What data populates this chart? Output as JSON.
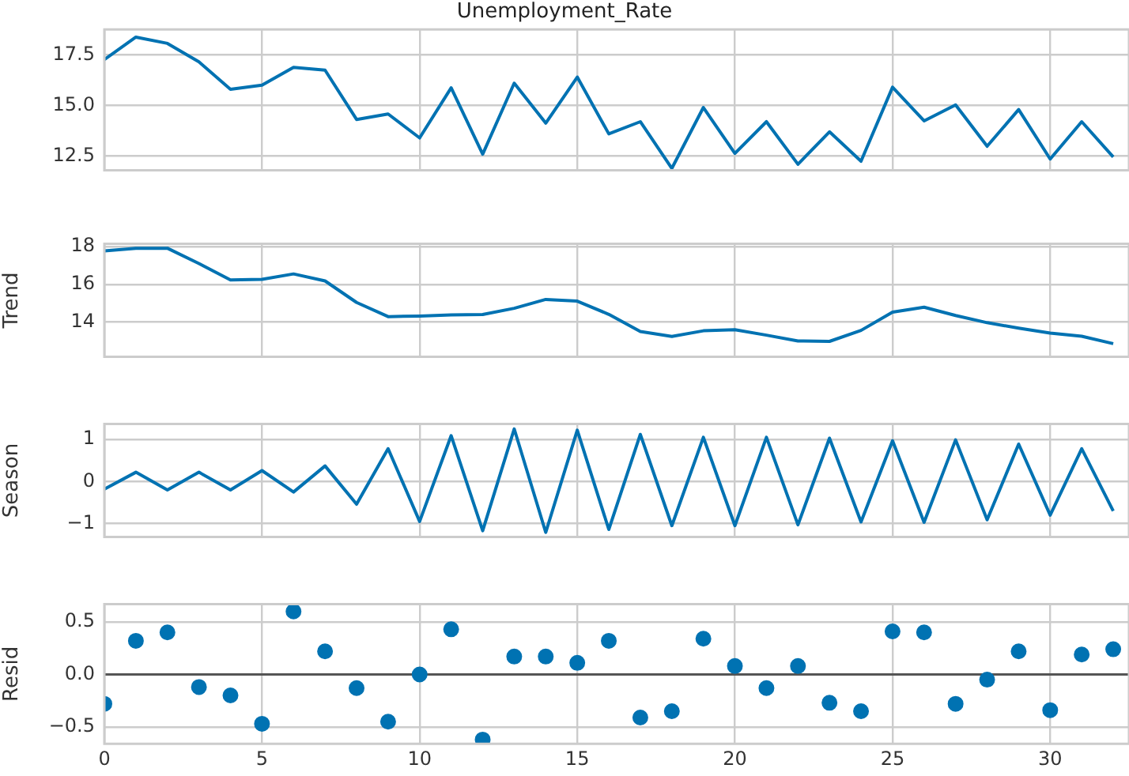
{
  "chart_data": [
    {
      "type": "line",
      "title": "Unemployment_Rate",
      "x": [
        0,
        1,
        2,
        3,
        4,
        5,
        6,
        7,
        8,
        9,
        10,
        11,
        12,
        13,
        14,
        15,
        16,
        17,
        18,
        19,
        20,
        21,
        22,
        23,
        24,
        25,
        26,
        27,
        28,
        29,
        30,
        31,
        32
      ],
      "xlim": [
        0,
        32.5
      ],
      "xticks": [
        0,
        5,
        10,
        15,
        20,
        25,
        30
      ],
      "ylim": [
        11.8,
        18.75
      ],
      "yticks": [
        12.5,
        {
          "value": 15,
          "label": "15.0"
        },
        17.5
      ],
      "tick_labels": "y",
      "grid": true,
      "color": "#0072b2",
      "values": [
        17.26,
        18.37,
        18.06,
        17.15,
        15.8,
        16.0,
        16.88,
        16.74,
        14.31,
        14.58,
        13.4,
        15.87,
        12.6,
        16.1,
        14.13,
        16.4,
        13.6,
        14.2,
        11.9,
        14.9,
        12.64,
        14.2,
        12.1,
        13.7,
        12.25,
        15.9,
        14.24,
        15.03,
        12.99,
        14.8,
        12.36,
        14.2,
        12.46
      ]
    },
    {
      "type": "line",
      "ylabel": "Trend",
      "x": [
        0,
        1,
        2,
        3,
        4,
        5,
        6,
        7,
        8,
        9,
        10,
        11,
        12,
        13,
        14,
        15,
        16,
        17,
        18,
        19,
        20,
        21,
        22,
        23,
        24,
        25,
        26,
        27,
        28,
        29,
        30,
        31,
        32
      ],
      "xlim": [
        0,
        32.5
      ],
      "xticks": [
        0,
        5,
        10,
        15,
        20,
        25,
        30
      ],
      "ylim": [
        12.16,
        18.15
      ],
      "yticks": [
        14,
        16,
        18
      ],
      "tick_labels": "y",
      "grid": true,
      "color": "#0072b2",
      "values": [
        17.77,
        17.91,
        17.91,
        17.1,
        16.23,
        16.26,
        16.55,
        16.18,
        15.04,
        14.29,
        14.32,
        14.38,
        14.4,
        14.73,
        15.2,
        15.11,
        14.41,
        13.5,
        13.24,
        13.54,
        13.6,
        13.31,
        13.0,
        12.98,
        13.56,
        14.53,
        14.79,
        14.35,
        13.97,
        13.68,
        13.42,
        13.25,
        12.86
      ]
    },
    {
      "type": "line",
      "ylabel": "Season",
      "x": [
        0,
        1,
        2,
        3,
        4,
        5,
        6,
        7,
        8,
        9,
        10,
        11,
        12,
        13,
        14,
        15,
        16,
        17,
        18,
        19,
        20,
        21,
        22,
        23,
        24,
        25,
        26,
        27,
        28,
        29,
        30,
        31,
        32
      ],
      "xlim": [
        0,
        32.5
      ],
      "xticks": [
        0,
        5,
        10,
        15,
        20,
        25,
        30
      ],
      "ylim": [
        -1.32,
        1.37
      ],
      "yticks": [
        {
          "value": -1,
          "label": "−1"
        },
        0,
        1
      ],
      "tick_labels": "y",
      "grid": true,
      "color": "#0072b2",
      "values": [
        -0.18,
        0.22,
        -0.2,
        0.22,
        -0.2,
        0.26,
        -0.25,
        0.37,
        -0.54,
        0.78,
        -0.95,
        1.09,
        -1.17,
        1.25,
        -1.21,
        1.22,
        -1.14,
        1.12,
        -1.05,
        1.05,
        -1.05,
        1.05,
        -1.03,
        1.03,
        -0.96,
        0.97,
        -0.97,
        0.99,
        -0.91,
        0.89,
        -0.8,
        0.78,
        -0.7
      ]
    },
    {
      "type": "scatter",
      "ylabel": "Resid",
      "x": [
        0,
        1,
        2,
        3,
        4,
        5,
        6,
        7,
        8,
        9,
        10,
        11,
        12,
        13,
        14,
        15,
        16,
        17,
        18,
        19,
        20,
        21,
        22,
        23,
        24,
        25,
        26,
        27,
        28,
        29,
        30,
        31,
        32
      ],
      "xlim": [
        0,
        32.5
      ],
      "xticks": [
        0,
        5,
        10,
        15,
        20,
        25,
        30
      ],
      "ylim": [
        -0.66,
        0.67
      ],
      "yticks": [
        {
          "value": -0.5,
          "label": "−0.5"
        },
        {
          "value": 0,
          "label": "0.0"
        },
        0.5
      ],
      "grid": true,
      "color": "#0072b2",
      "marker": "circle",
      "ref_lines": [
        {
          "axis": "y",
          "value": 0,
          "color": "#555555"
        }
      ],
      "values": [
        -0.28,
        0.32,
        0.4,
        -0.12,
        -0.2,
        -0.47,
        0.6,
        0.22,
        -0.13,
        -0.45,
        0.0,
        0.43,
        -0.62,
        0.17,
        0.17,
        0.11,
        0.32,
        -0.41,
        -0.35,
        0.34,
        0.08,
        -0.13,
        0.08,
        -0.27,
        -0.35,
        0.41,
        0.4,
        -0.28,
        -0.05,
        0.22,
        -0.34,
        0.19,
        0.24
      ]
    }
  ]
}
